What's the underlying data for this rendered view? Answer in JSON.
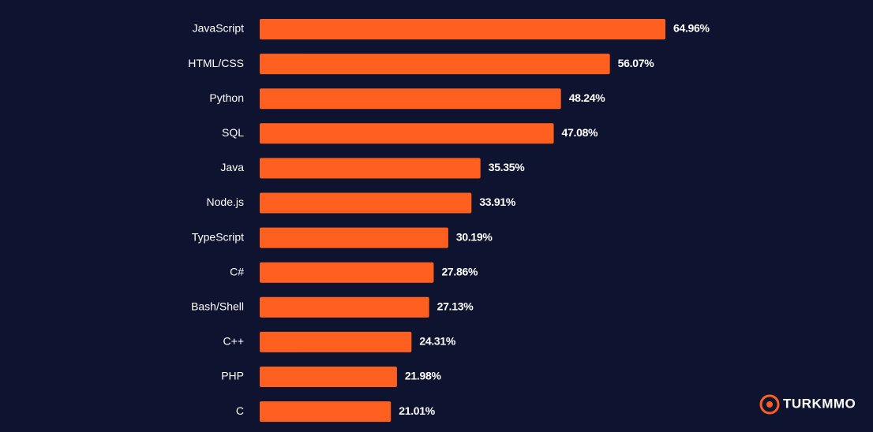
{
  "chart_data": {
    "type": "bar",
    "orientation": "horizontal",
    "categories": [
      "JavaScript",
      "HTML/CSS",
      "Python",
      "SQL",
      "Java",
      "Node.js",
      "TypeScript",
      "C#",
      "Bash/Shell",
      "C++",
      "PHP",
      "C"
    ],
    "values": [
      64.96,
      56.07,
      48.24,
      47.08,
      35.35,
      33.91,
      30.19,
      27.86,
      27.13,
      24.31,
      21.98,
      21.01
    ],
    "value_labels": [
      "64.96%",
      "56.07%",
      "48.24%",
      "47.08%",
      "35.35%",
      "33.91%",
      "30.19%",
      "27.86%",
      "27.13%",
      "24.31%",
      "21.98%",
      "21.01%"
    ],
    "color": "#ff5f1f",
    "watermark": "TURKMMO"
  }
}
